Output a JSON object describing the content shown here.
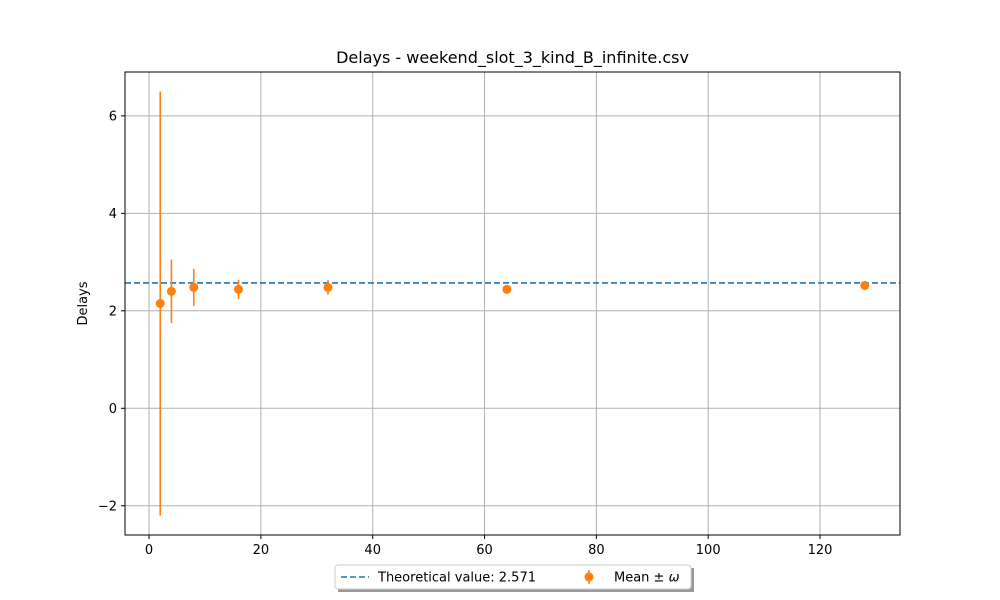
{
  "chart_data": {
    "type": "scatter",
    "title": "Delays - weekend_slot_3_kind_B_infinite.csv",
    "xlabel": "",
    "ylabel": "Delays",
    "xlim": [
      -4.3,
      134.3
    ],
    "ylim": [
      -2.6,
      6.9
    ],
    "xticks": [
      0,
      20,
      40,
      60,
      80,
      100,
      120
    ],
    "yticks": [
      -2,
      0,
      2,
      4,
      6
    ],
    "xtick_labels": [
      "0",
      "20",
      "40",
      "60",
      "80",
      "100",
      "120"
    ],
    "ytick_labels": [
      "−2",
      "0",
      "2",
      "4",
      "6"
    ],
    "grid": true,
    "legend_position": "bottom-center, below plot",
    "reference_line": {
      "label": "Theoretical value: 2.571",
      "value": 2.571,
      "color": "#1f77b4",
      "style": "dashed"
    },
    "series": [
      {
        "name": "Mean ± ω",
        "color": "#ff7f0e",
        "points": [
          {
            "x": 2,
            "y": 2.15,
            "yerr": 4.35
          },
          {
            "x": 4,
            "y": 2.4,
            "yerr": 0.65
          },
          {
            "x": 8,
            "y": 2.48,
            "yerr": 0.38
          },
          {
            "x": 16,
            "y": 2.44,
            "yerr": 0.2
          },
          {
            "x": 32,
            "y": 2.48,
            "yerr": 0.15
          },
          {
            "x": 64,
            "y": 2.44,
            "yerr": 0.06
          },
          {
            "x": 128,
            "y": 2.52,
            "yerr": 0.08
          }
        ]
      }
    ]
  },
  "legend": {
    "line_label": "Theoretical value: 2.571",
    "series_label_prefix": "Mean ± ",
    "series_label_symbol": "ω"
  }
}
